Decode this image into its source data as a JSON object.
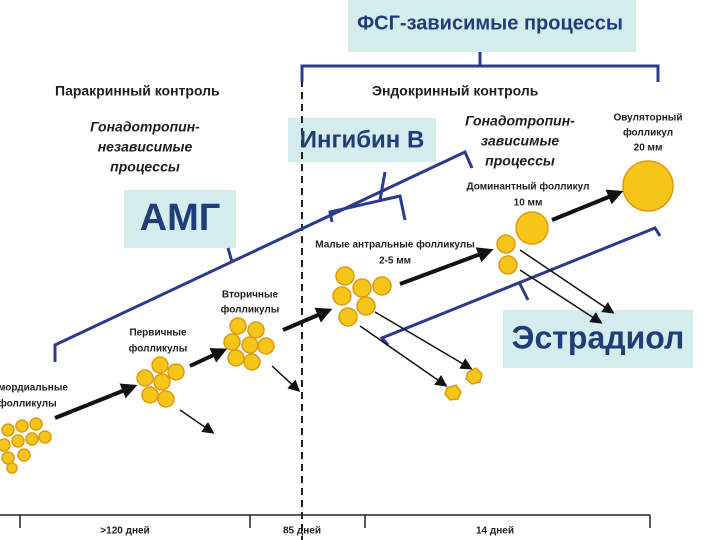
{
  "header": {
    "title": "ФСГ-зависимые процессы"
  },
  "controls": {
    "paracrine": "Паракринный контроль",
    "endocrine": "Эндокринный контроль"
  },
  "processes": {
    "independent": [
      "Гонадотропин-",
      "независимые",
      "процессы"
    ],
    "dependent": [
      "Гонадотропин-",
      "зависимые",
      "процессы"
    ]
  },
  "hormones": {
    "amh": "АМГ",
    "inhibin": "Ингибин В",
    "estradiol": "Эстрадиол"
  },
  "follicles": {
    "primordial": [
      "мордиальные",
      "фолликулы"
    ],
    "primary": [
      "Первичные",
      "фолликулы"
    ],
    "secondary": [
      "Вторичные",
      "фолликулы"
    ],
    "small_antral": [
      "Малые антральные фолликулы",
      "2-5 мм"
    ],
    "dominant": [
      "Доминантный фолликул",
      "10 мм"
    ],
    "ovulatory": [
      "Овуляторный",
      "фолликул",
      "20 мм"
    ]
  },
  "timeline": [
    ">120 дней",
    "85 дней",
    "14 дней"
  ]
}
